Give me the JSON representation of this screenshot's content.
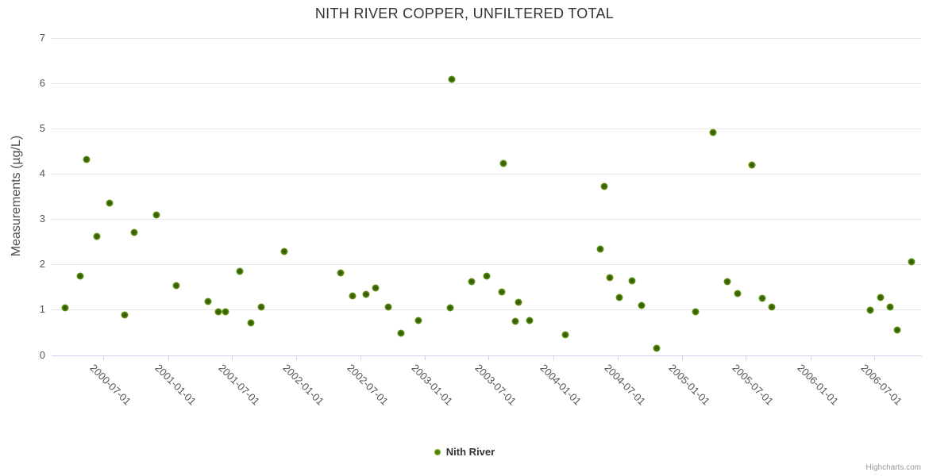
{
  "title": "NITH RIVER COPPER, UNFILTERED TOTAL",
  "credits_label": "Highcharts.com",
  "colors": {
    "series_green": "#86bd18",
    "series_green_dark": "#2f5205",
    "gridline": "#e6e6e6",
    "axis_line": "#ccd6eb",
    "title_text": "#333333",
    "axis_label_text": "#555555",
    "credits_text": "#999999"
  },
  "legend": {
    "items": [
      {
        "label": "Nith River",
        "marker": "green-dot"
      }
    ]
  },
  "chart_data": {
    "type": "scatter",
    "title": "NITH RIVER COPPER, UNFILTERED TOTAL",
    "xlabel": "",
    "ylabel": "Measurements (µg/L)",
    "ylim": [
      0,
      7
    ],
    "y_ticks": [
      0,
      1,
      2,
      3,
      4,
      5,
      6,
      7
    ],
    "x_range": [
      "2000-02-05",
      "2006-11-11"
    ],
    "x_ticks": [
      "2000-07-01",
      "2001-01-01",
      "2001-07-01",
      "2002-01-01",
      "2002-07-01",
      "2003-01-01",
      "2003-07-01",
      "2004-01-01",
      "2004-07-01",
      "2005-01-01",
      "2005-07-01",
      "2006-01-01",
      "2006-07-01"
    ],
    "grid": true,
    "legend_position": "bottom-center",
    "series": [
      {
        "name": "Nith River",
        "color": "#86bd18",
        "points": [
          [
            "2000-03-15",
            1.04
          ],
          [
            "2000-04-27",
            1.74
          ],
          [
            "2000-05-15",
            4.31
          ],
          [
            "2000-06-13",
            2.62
          ],
          [
            "2000-07-19",
            3.35
          ],
          [
            "2000-08-31",
            0.88
          ],
          [
            "2000-09-27",
            2.7
          ],
          [
            "2000-11-29",
            3.09
          ],
          [
            "2001-01-24",
            1.53
          ],
          [
            "2001-04-25",
            1.18
          ],
          [
            "2001-05-24",
            0.95
          ],
          [
            "2001-06-13",
            0.95
          ],
          [
            "2001-07-24",
            1.85
          ],
          [
            "2001-08-24",
            0.71
          ],
          [
            "2001-09-23",
            1.06
          ],
          [
            "2001-11-27",
            2.28
          ],
          [
            "2002-05-06",
            1.81
          ],
          [
            "2002-06-09",
            1.3
          ],
          [
            "2002-07-18",
            1.34
          ],
          [
            "2002-08-14",
            1.48
          ],
          [
            "2002-09-19",
            1.06
          ],
          [
            "2002-10-25",
            0.48
          ],
          [
            "2002-12-13",
            0.76
          ],
          [
            "2003-03-14",
            1.04
          ],
          [
            "2003-03-18",
            6.08
          ],
          [
            "2003-05-13",
            1.62
          ],
          [
            "2003-06-25",
            1.74
          ],
          [
            "2003-08-07",
            1.39
          ],
          [
            "2003-08-11",
            4.23
          ],
          [
            "2003-09-14",
            0.74
          ],
          [
            "2003-09-23",
            1.16
          ],
          [
            "2003-10-25",
            0.76
          ],
          [
            "2004-02-04",
            0.45
          ],
          [
            "2004-05-13",
            2.34
          ],
          [
            "2004-05-24",
            3.72
          ],
          [
            "2004-06-09",
            1.71
          ],
          [
            "2004-07-06",
            1.27
          ],
          [
            "2004-08-11",
            1.64
          ],
          [
            "2004-09-07",
            1.09
          ],
          [
            "2004-10-20",
            0.15
          ],
          [
            "2005-02-08",
            0.95
          ],
          [
            "2005-03-30",
            4.91
          ],
          [
            "2005-05-09",
            1.62
          ],
          [
            "2005-06-07",
            1.36
          ],
          [
            "2005-07-18",
            4.19
          ],
          [
            "2005-08-16",
            1.25
          ],
          [
            "2005-09-12",
            1.06
          ],
          [
            "2006-06-19",
            0.99
          ],
          [
            "2006-07-19",
            1.27
          ],
          [
            "2006-08-15",
            1.06
          ],
          [
            "2006-09-04",
            0.55
          ],
          [
            "2006-10-15",
            2.06
          ]
        ]
      }
    ]
  }
}
